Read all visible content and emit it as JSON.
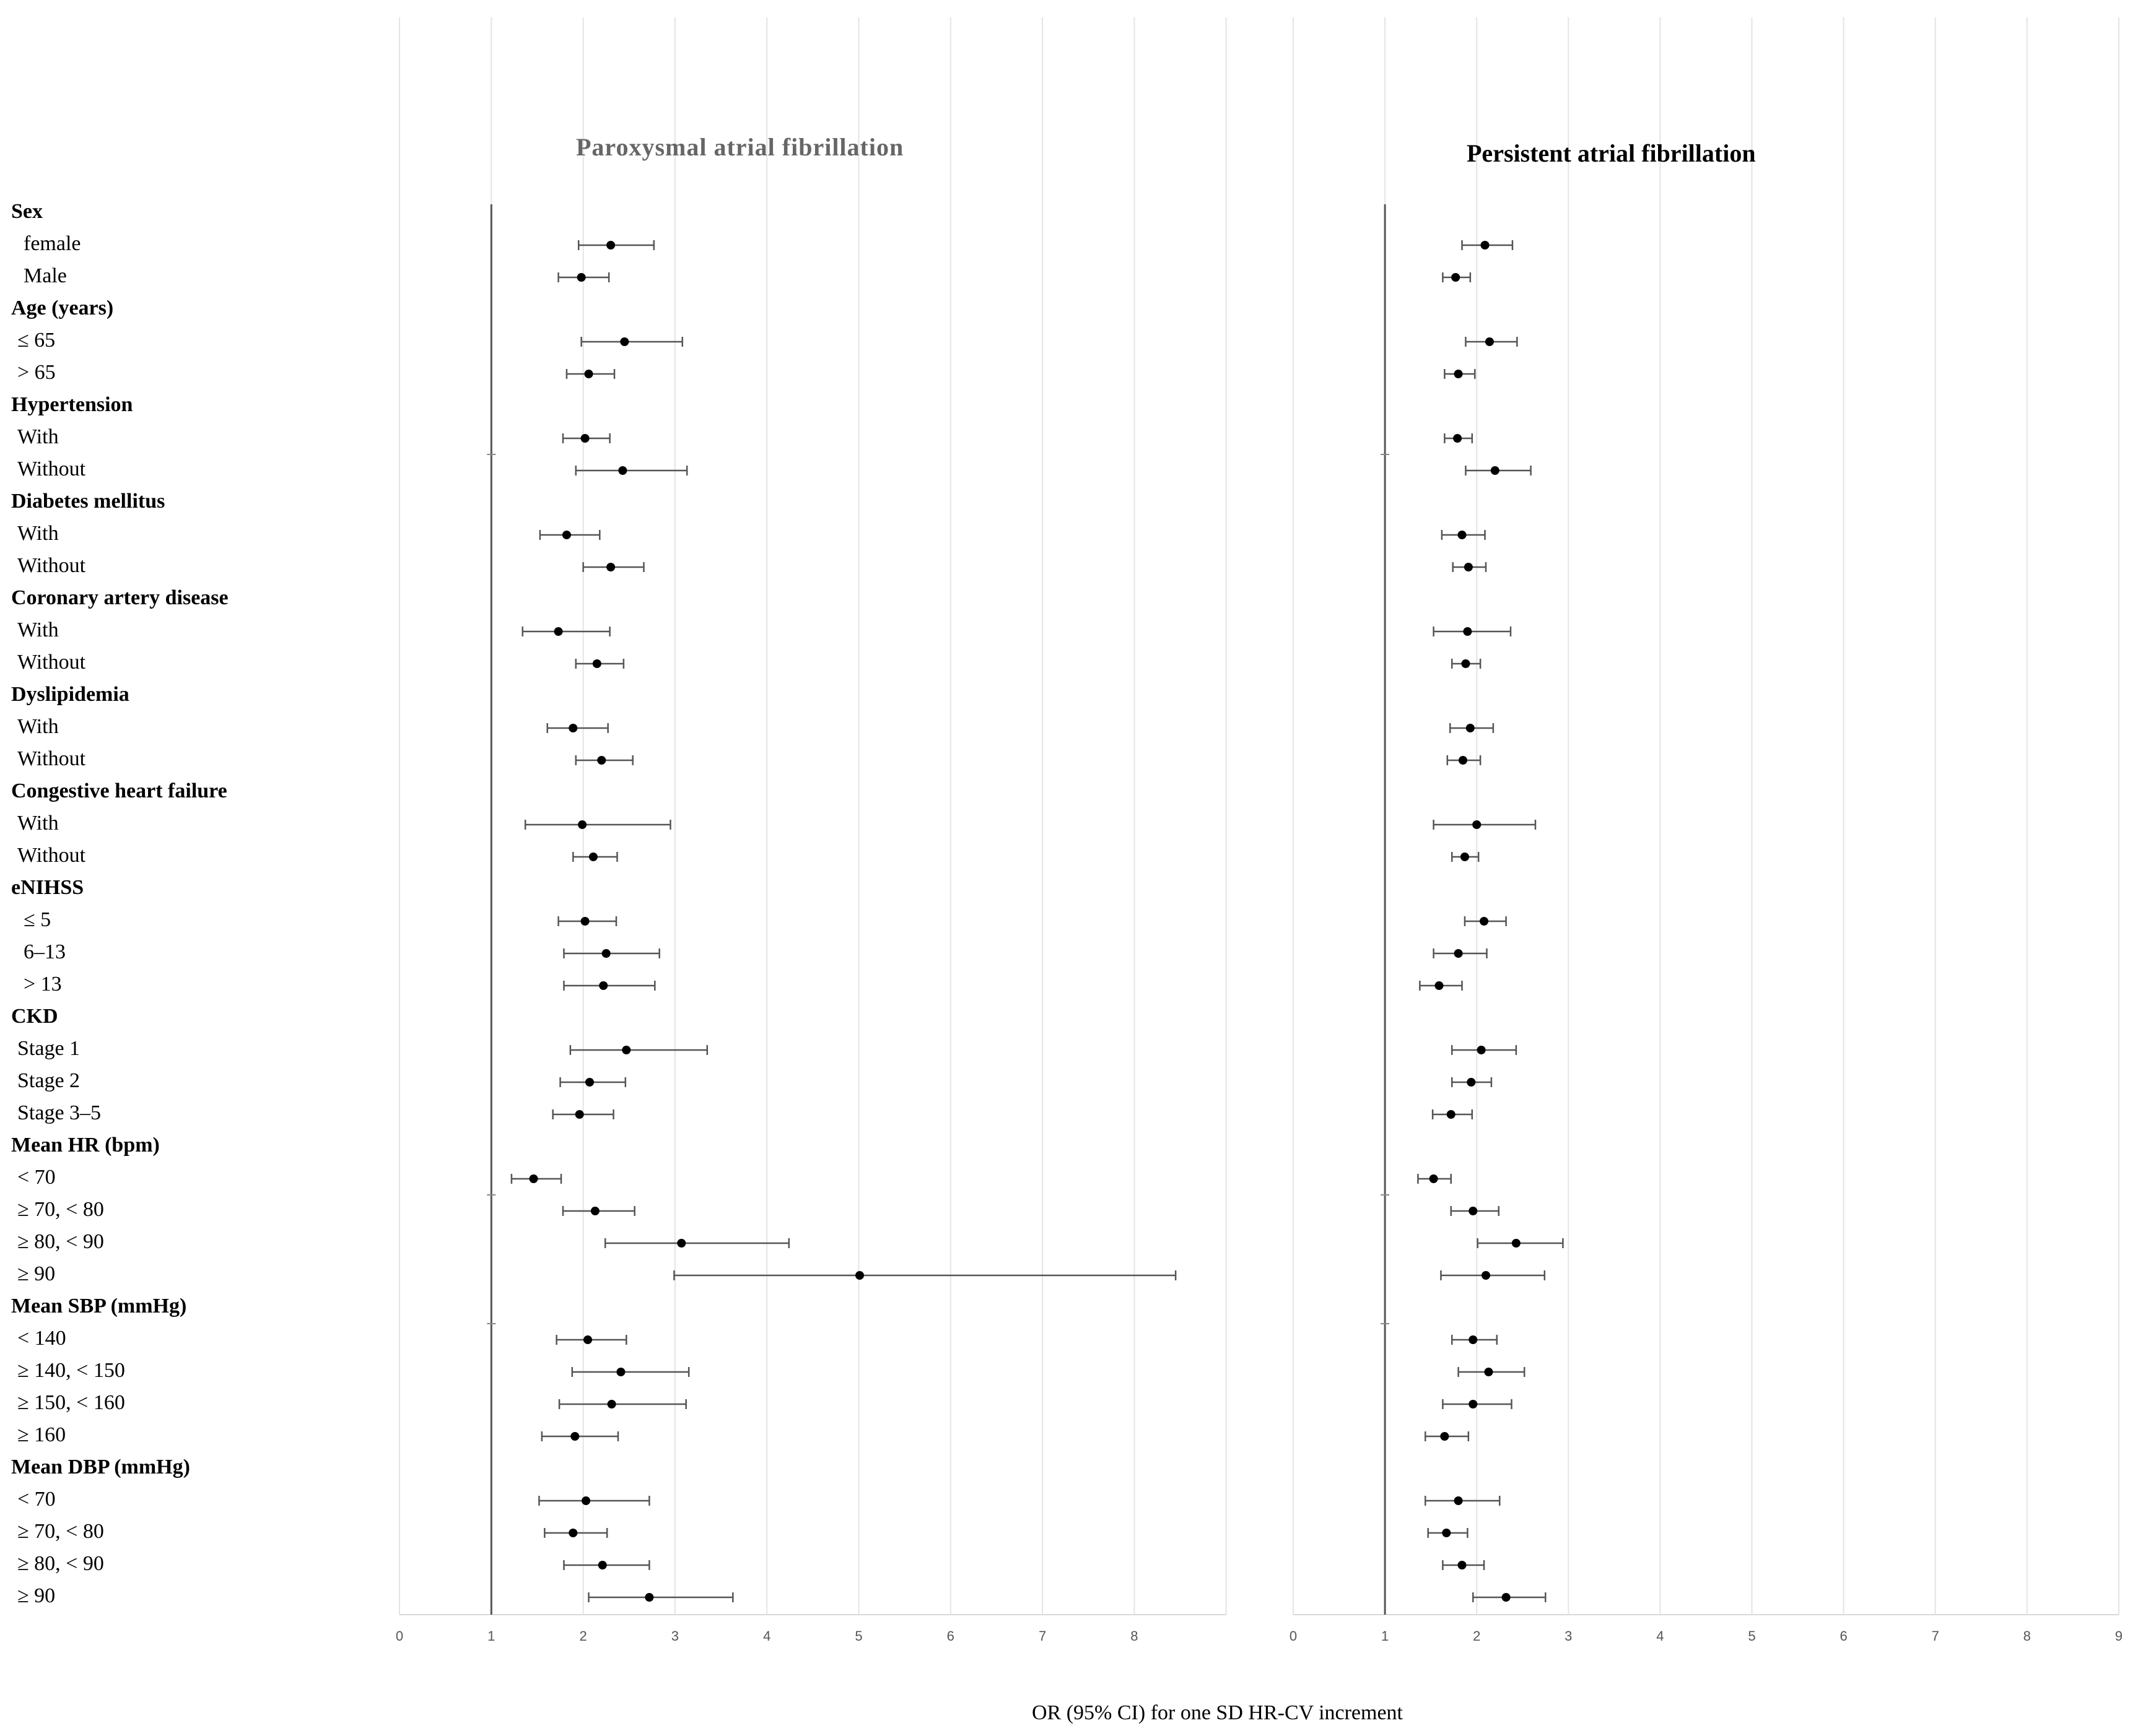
{
  "chart_data": {
    "type": "forest",
    "xlabel": "OR (95% CI) for one SD HR-CV increment",
    "reference_line": 1,
    "rows": [
      {
        "label": "Sex",
        "header": true
      },
      {
        "label": "female",
        "indent": 2
      },
      {
        "label": "Male",
        "indent": 2
      },
      {
        "label": "Age (years)",
        "header": true
      },
      {
        "label": "≤ 65",
        "indent": 1
      },
      {
        "label": "> 65",
        "indent": 1
      },
      {
        "label": "Hypertension",
        "header": true
      },
      {
        "label": "With",
        "indent": 1
      },
      {
        "label": "Without",
        "indent": 1
      },
      {
        "label": "Diabetes mellitus",
        "header": true
      },
      {
        "label": "With",
        "indent": 1
      },
      {
        "label": "Without",
        "indent": 1
      },
      {
        "label": "Coronary artery disease",
        "header": true
      },
      {
        "label": "With",
        "indent": 1
      },
      {
        "label": "Without",
        "indent": 1
      },
      {
        "label": "Dyslipidemia",
        "header": true
      },
      {
        "label": "With",
        "indent": 1
      },
      {
        "label": "Without",
        "indent": 1
      },
      {
        "label": "Congestive heart failure",
        "header": true
      },
      {
        "label": "With",
        "indent": 1
      },
      {
        "label": "Without",
        "indent": 1
      },
      {
        "label": "eNIHSS",
        "header": true
      },
      {
        "label": "≤ 5",
        "indent": 2
      },
      {
        "label": "6–13",
        "indent": 2
      },
      {
        "label": "> 13",
        "indent": 2
      },
      {
        "label": "CKD",
        "header": true
      },
      {
        "label": "Stage 1",
        "indent": 1
      },
      {
        "label": "Stage 2",
        "indent": 1
      },
      {
        "label": "Stage 3–5",
        "indent": 1
      },
      {
        "label": "Mean HR (bpm)",
        "header": true
      },
      {
        "label": "< 70",
        "indent": 1
      },
      {
        "label": "≥ 70, < 80",
        "indent": 1
      },
      {
        "label": "≥ 80, < 90",
        "indent": 1
      },
      {
        "label": "≥ 90",
        "indent": 1
      },
      {
        "label": "Mean SBP (mmHg)",
        "header": true
      },
      {
        "label": "< 140",
        "indent": 1
      },
      {
        "label": "≥ 140, < 150",
        "indent": 1
      },
      {
        "label": "≥ 150, < 160",
        "indent": 1
      },
      {
        "label": "≥ 160",
        "indent": 1
      },
      {
        "label": "Mean DBP (mmHg)",
        "header": true
      },
      {
        "label": "< 70",
        "indent": 1
      },
      {
        "label": "≥ 70, < 80",
        "indent": 1
      },
      {
        "label": "≥ 80, < 90",
        "indent": 1
      },
      {
        "label": "≥ 90",
        "indent": 1
      }
    ],
    "panels": [
      {
        "title": "Paroxysmal atrial fibrillation",
        "xlim": [
          0,
          9
        ],
        "ticks": [
          "0",
          "1",
          "2",
          "3",
          "4",
          "5",
          "6",
          "7",
          "8"
        ],
        "estimates": [
          {
            "row": 1,
            "or": 2.3,
            "lo": 1.95,
            "hi": 2.77
          },
          {
            "row": 2,
            "or": 1.98,
            "lo": 1.73,
            "hi": 2.28
          },
          {
            "row": 4,
            "or": 2.45,
            "lo": 1.98,
            "hi": 3.08
          },
          {
            "row": 5,
            "or": 2.06,
            "lo": 1.82,
            "hi": 2.34
          },
          {
            "row": 7,
            "or": 2.02,
            "lo": 1.78,
            "hi": 2.29
          },
          {
            "row": 8,
            "or": 2.43,
            "lo": 1.92,
            "hi": 3.13
          },
          {
            "row": 10,
            "or": 1.82,
            "lo": 1.53,
            "hi": 2.18
          },
          {
            "row": 11,
            "or": 2.3,
            "lo": 2.0,
            "hi": 2.66
          },
          {
            "row": 13,
            "or": 1.73,
            "lo": 1.34,
            "hi": 2.29
          },
          {
            "row": 14,
            "or": 2.15,
            "lo": 1.92,
            "hi": 2.44
          },
          {
            "row": 16,
            "or": 1.89,
            "lo": 1.61,
            "hi": 2.27
          },
          {
            "row": 17,
            "or": 2.2,
            "lo": 1.92,
            "hi": 2.54
          },
          {
            "row": 19,
            "or": 1.99,
            "lo": 1.37,
            "hi": 2.95
          },
          {
            "row": 20,
            "or": 2.11,
            "lo": 1.89,
            "hi": 2.37
          },
          {
            "row": 22,
            "or": 2.02,
            "lo": 1.73,
            "hi": 2.36
          },
          {
            "row": 23,
            "or": 2.25,
            "lo": 1.79,
            "hi": 2.83
          },
          {
            "row": 24,
            "or": 2.22,
            "lo": 1.79,
            "hi": 2.78
          },
          {
            "row": 26,
            "or": 2.47,
            "lo": 1.86,
            "hi": 3.35
          },
          {
            "row": 27,
            "or": 2.07,
            "lo": 1.75,
            "hi": 2.46
          },
          {
            "row": 28,
            "or": 1.96,
            "lo": 1.67,
            "hi": 2.33
          },
          {
            "row": 30,
            "or": 1.46,
            "lo": 1.22,
            "hi": 1.76
          },
          {
            "row": 31,
            "or": 2.13,
            "lo": 1.78,
            "hi": 2.56
          },
          {
            "row": 32,
            "or": 3.07,
            "lo": 2.24,
            "hi": 4.24
          },
          {
            "row": 33,
            "or": 5.01,
            "lo": 2.99,
            "hi": 8.45
          },
          {
            "row": 35,
            "or": 2.05,
            "lo": 1.71,
            "hi": 2.47
          },
          {
            "row": 36,
            "or": 2.41,
            "lo": 1.88,
            "hi": 3.15
          },
          {
            "row": 37,
            "or": 2.31,
            "lo": 1.74,
            "hi": 3.12
          },
          {
            "row": 38,
            "or": 1.91,
            "lo": 1.55,
            "hi": 2.38
          },
          {
            "row": 40,
            "or": 2.03,
            "lo": 1.52,
            "hi": 2.72
          },
          {
            "row": 41,
            "or": 1.89,
            "lo": 1.58,
            "hi": 2.26
          },
          {
            "row": 42,
            "or": 2.21,
            "lo": 1.79,
            "hi": 2.72
          },
          {
            "row": 43,
            "or": 2.72,
            "lo": 2.06,
            "hi": 3.63
          }
        ]
      },
      {
        "title": "Persistent atrial fibrillation",
        "xlim": [
          0,
          9
        ],
        "ticks": [
          "0",
          "1",
          "2",
          "3",
          "4",
          "5",
          "6",
          "7",
          "8",
          "9"
        ],
        "estimates": [
          {
            "row": 1,
            "or": 2.09,
            "lo": 1.84,
            "hi": 2.39
          },
          {
            "row": 2,
            "or": 1.77,
            "lo": 1.63,
            "hi": 1.93
          },
          {
            "row": 4,
            "or": 2.14,
            "lo": 1.88,
            "hi": 2.44
          },
          {
            "row": 5,
            "or": 1.8,
            "lo": 1.65,
            "hi": 1.98
          },
          {
            "row": 7,
            "or": 1.79,
            "lo": 1.65,
            "hi": 1.95
          },
          {
            "row": 8,
            "or": 2.2,
            "lo": 1.88,
            "hi": 2.59
          },
          {
            "row": 10,
            "or": 1.84,
            "lo": 1.62,
            "hi": 2.09
          },
          {
            "row": 11,
            "or": 1.91,
            "lo": 1.74,
            "hi": 2.1
          },
          {
            "row": 13,
            "or": 1.9,
            "lo": 1.53,
            "hi": 2.37
          },
          {
            "row": 14,
            "or": 1.88,
            "lo": 1.73,
            "hi": 2.04
          },
          {
            "row": 16,
            "or": 1.93,
            "lo": 1.71,
            "hi": 2.18
          },
          {
            "row": 17,
            "or": 1.85,
            "lo": 1.68,
            "hi": 2.04
          },
          {
            "row": 19,
            "or": 2.0,
            "lo": 1.53,
            "hi": 2.64
          },
          {
            "row": 20,
            "or": 1.87,
            "lo": 1.73,
            "hi": 2.02
          },
          {
            "row": 22,
            "or": 2.08,
            "lo": 1.87,
            "hi": 2.32
          },
          {
            "row": 23,
            "or": 1.8,
            "lo": 1.53,
            "hi": 2.11
          },
          {
            "row": 24,
            "or": 1.59,
            "lo": 1.38,
            "hi": 1.84
          },
          {
            "row": 26,
            "or": 2.05,
            "lo": 1.73,
            "hi": 2.43
          },
          {
            "row": 27,
            "or": 1.94,
            "lo": 1.73,
            "hi": 2.16
          },
          {
            "row": 28,
            "or": 1.72,
            "lo": 1.52,
            "hi": 1.95
          },
          {
            "row": 30,
            "or": 1.53,
            "lo": 1.36,
            "hi": 1.72
          },
          {
            "row": 31,
            "or": 1.96,
            "lo": 1.72,
            "hi": 2.24
          },
          {
            "row": 32,
            "or": 2.43,
            "lo": 2.01,
            "hi": 2.94
          },
          {
            "row": 33,
            "or": 2.1,
            "lo": 1.61,
            "hi": 2.74
          },
          {
            "row": 35,
            "or": 1.96,
            "lo": 1.73,
            "hi": 2.22
          },
          {
            "row": 36,
            "or": 2.13,
            "lo": 1.8,
            "hi": 2.52
          },
          {
            "row": 37,
            "or": 1.96,
            "lo": 1.63,
            "hi": 2.38
          },
          {
            "row": 38,
            "or": 1.65,
            "lo": 1.44,
            "hi": 1.91
          },
          {
            "row": 40,
            "or": 1.8,
            "lo": 1.44,
            "hi": 2.25
          },
          {
            "row": 41,
            "or": 1.67,
            "lo": 1.47,
            "hi": 1.9
          },
          {
            "row": 42,
            "or": 1.84,
            "lo": 1.63,
            "hi": 2.08
          },
          {
            "row": 43,
            "or": 2.32,
            "lo": 1.96,
            "hi": 2.75
          }
        ]
      }
    ]
  }
}
